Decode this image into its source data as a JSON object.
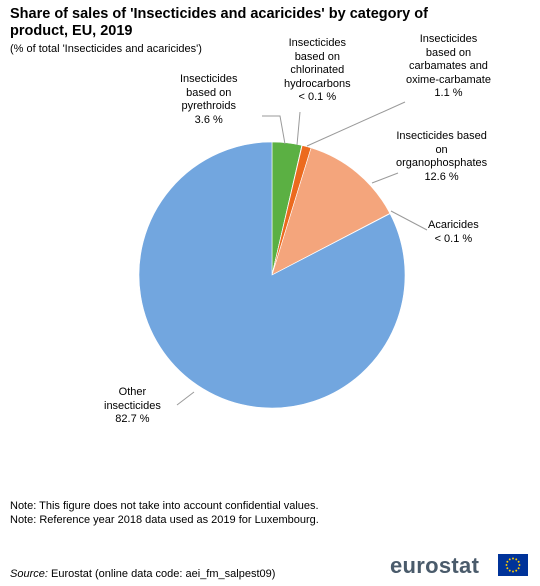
{
  "title": "Share of sales of 'Insecticides and acaricides' by category of product, EU, 2019",
  "subtitle": "(% of total 'Insecticides and acaricides')",
  "chart_data": {
    "type": "pie",
    "title": "Share of sales of 'Insecticides and acaricides' by category of product, EU, 2019",
    "subtitle": "(% of total 'Insecticides and acaricides')",
    "start_angle_deg": 0,
    "direction": "clockwise",
    "slices": [
      {
        "name": "Insecticides based on pyrethroids",
        "value": 3.6,
        "label": "3.6 %",
        "color": "#5bb043"
      },
      {
        "name": "Insecticides based on chlorinated hydrocarbons",
        "value": 0.05,
        "label": "< 0.1 %",
        "color": "#d9e021"
      },
      {
        "name": "Insecticides based on carbamates and oxime-carbamate",
        "value": 1.1,
        "label": "1.1 %",
        "color": "#ec6a1e"
      },
      {
        "name": "Insecticides based on organophosphates",
        "value": 12.6,
        "label": "12.6 %",
        "color": "#f4a57c"
      },
      {
        "name": "Acaricides",
        "value": 0.05,
        "label": "< 0.1 %",
        "color": "#c96d5a"
      },
      {
        "name": "Other insecticides",
        "value": 82.7,
        "label": "82.7 %",
        "color": "#72a6df"
      }
    ]
  },
  "labels": {
    "pyrethroids": [
      "Insecticides",
      "based on",
      "pyrethroids",
      "3.6 %"
    ],
    "chlorinated": [
      "Insecticides",
      "based on",
      "chlorinated",
      "hydrocarbons",
      "< 0.1 %"
    ],
    "carbamates": [
      "Insecticides",
      "based on",
      "carbamates and",
      "oxime-carbamate",
      "1.1 %"
    ],
    "organophosphates": [
      "Insecticides based",
      "on",
      "organophosphates",
      "12.6 %"
    ],
    "acaricides": [
      "Acaricides",
      "< 0.1 %"
    ],
    "other": [
      "Other",
      "insecticides",
      "82.7 %"
    ]
  },
  "notes": [
    "Note: This figure does not take into account confidential values.",
    "Note: Reference year 2018 data used as 2019 for Luxembourg."
  ],
  "source": {
    "label": "Source:",
    "text": "Eurostat (online data code: aei_fm_salpest09)"
  },
  "logo": {
    "text": "eurostat",
    "flag_color": "#003399",
    "star_color": "#ffcc00"
  }
}
